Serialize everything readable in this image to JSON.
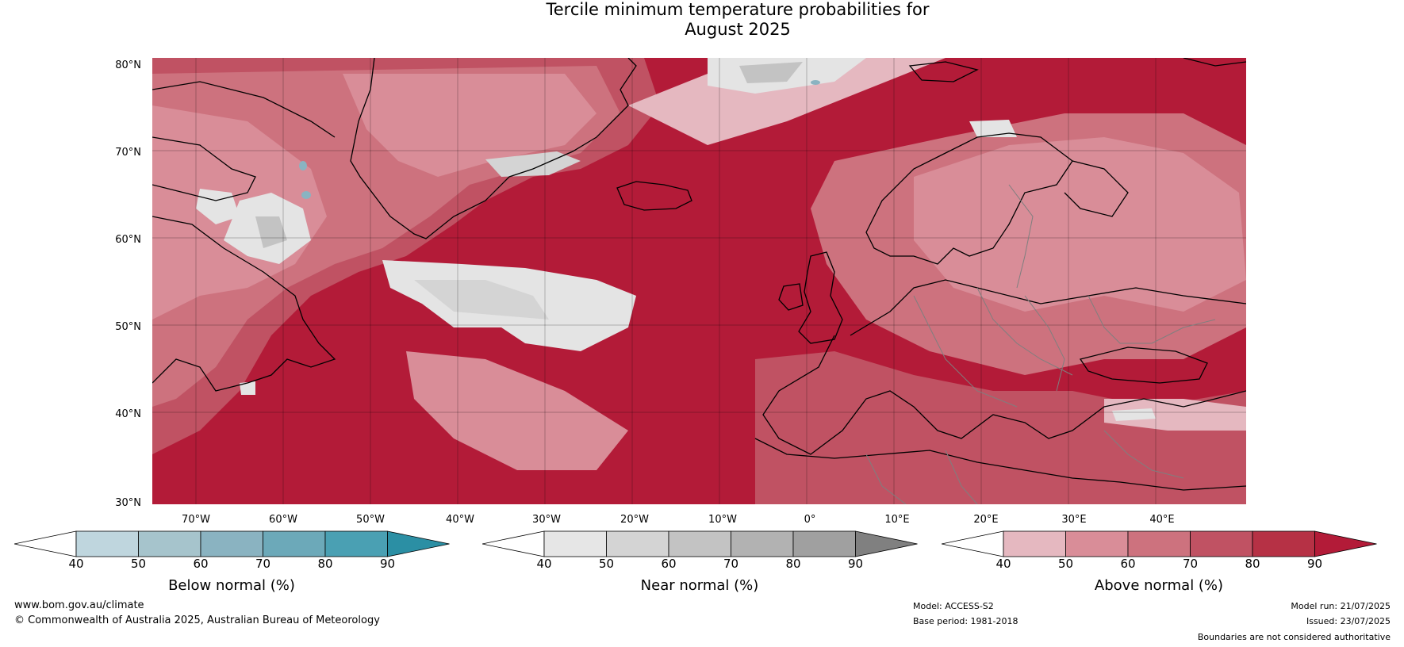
{
  "title": {
    "line1": "Tercile minimum temperature probabilities for",
    "line2": "August 2025"
  },
  "lat_labels": [
    "80°N",
    "70°N",
    "60°N",
    "50°N",
    "40°N",
    "30°N"
  ],
  "lon_labels": [
    "70°W",
    "60°W",
    "50°W",
    "40°W",
    "30°W",
    "20°W",
    "10°W",
    "0°",
    "10°E",
    "20°E",
    "30°E",
    "40°E"
  ],
  "colorbars": [
    {
      "label": "Below normal (%)",
      "ticks": [
        "40",
        "50",
        "60",
        "70",
        "80",
        "90"
      ],
      "colors": [
        "#ffffff",
        "#bfd6de",
        "#a6c4cc",
        "#8ab3c1",
        "#6ca9b9",
        "#4aa0b3",
        "#2b8fa4"
      ]
    },
    {
      "label": "Near normal (%)",
      "ticks": [
        "40",
        "50",
        "60",
        "70",
        "80",
        "90"
      ],
      "colors": [
        "#ffffff",
        "#e6e6e6",
        "#d4d4d4",
        "#c3c3c3",
        "#b2b2b2",
        "#a0a0a0",
        "#808080"
      ]
    },
    {
      "label": "Above normal (%)",
      "ticks": [
        "40",
        "50",
        "60",
        "70",
        "80",
        "90"
      ],
      "colors": [
        "#ffffff",
        "#e5b8c0",
        "#d98d98",
        "#cd727e",
        "#c05263",
        "#b63145",
        "#b31b38"
      ]
    }
  ],
  "footer": {
    "website": "www.bom.gov.au/climate",
    "copyright": "© Commonwealth of Australia 2025, Australian Bureau of Meteorology",
    "model": "Model: ACCESS-S2",
    "base_period": "Base period: 1981-2018",
    "model_run": "Model run: 21/07/2025",
    "issued": "Issued: 23/07/2025",
    "disclaimer": "Boundaries are not considered authoritative"
  },
  "colors": {
    "above_90": "#b31b38",
    "above_80": "#b63145",
    "above_70": "#c05263",
    "above_60": "#cd727e",
    "above_50": "#d98d98",
    "above_40": "#e5b8c0",
    "near": "#e4e4e4",
    "near_dark": "#bdbdbd",
    "below": "#8ab3c1",
    "coast": "#000000",
    "border": "#7f7f7f"
  }
}
